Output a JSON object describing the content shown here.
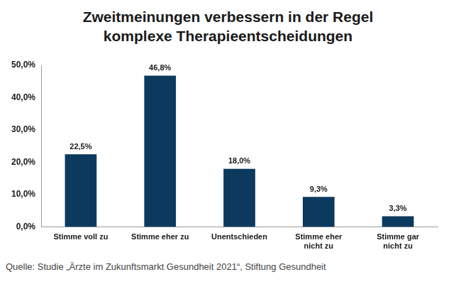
{
  "chart_data": {
    "type": "bar",
    "title": [
      "Zweitmeinungen verbessern in der Regel",
      "komplexe Therapieentscheidungen"
    ],
    "categories": [
      "Stimme voll zu",
      "Stimme eher zu",
      "Unentschieden",
      "Stimme eher nicht zu",
      "Stimme gar nicht zu"
    ],
    "values": [
      22.5,
      46.8,
      18.0,
      9.3,
      3.3
    ],
    "value_labels": [
      "22,5%",
      "46,8%",
      "18,0%",
      "9,3%",
      "3,3%"
    ],
    "color": "#0c3a5e",
    "ylim": [
      0,
      50
    ],
    "yticks": [
      {
        "value": 0,
        "label": "0,0%"
      },
      {
        "value": 10,
        "label": "10,0%"
      },
      {
        "value": 20,
        "label": "20,0%"
      },
      {
        "value": 30,
        "label": "30,0%"
      },
      {
        "value": 40,
        "label": "40,0%"
      },
      {
        "value": 50,
        "label": "50,0%"
      }
    ],
    "grid": false,
    "data_labels": true,
    "source": "Quelle: Studie „Ärzte im Zukunftsmarkt Gesundheit 2021“, Stiftung Gesundheit"
  }
}
